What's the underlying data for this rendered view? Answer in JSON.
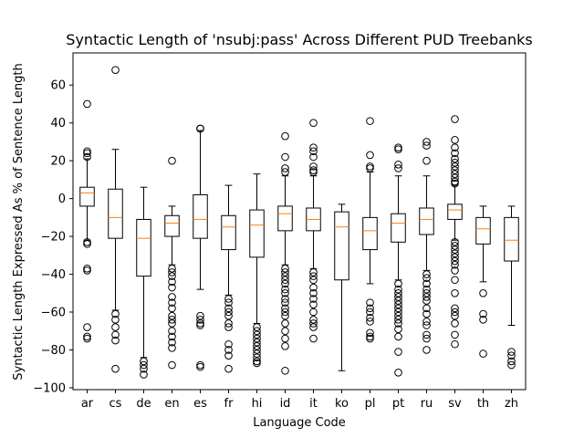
{
  "chart_data": {
    "type": "box",
    "title": "Syntactic Length of 'nsubj:pass' Across Different PUD Treebanks",
    "xlabel": "Language Code",
    "ylabel": "Syntactic Length Expressed As % of Sentence Length",
    "ylim": [
      -101,
      77
    ],
    "yticks": [
      -100,
      -80,
      -60,
      -40,
      -20,
      0,
      20,
      40,
      60
    ],
    "grid": false,
    "colors": {
      "box": "#000000",
      "median": "#ff7f0e",
      "flier": "#000000"
    },
    "categories": [
      "ar",
      "cs",
      "de",
      "en",
      "es",
      "fr",
      "hi",
      "id",
      "it",
      "ko",
      "pl",
      "pt",
      "ru",
      "sv",
      "th",
      "zh"
    ],
    "boxes": [
      {
        "label": "ar",
        "whislo": -22,
        "q1": -4,
        "med": 3,
        "q3": 6,
        "whishi": 21,
        "fliers": [
          50,
          25,
          24,
          22,
          -23,
          -24,
          -37,
          -38,
          -68,
          -73,
          -74
        ]
      },
      {
        "label": "cs",
        "whislo": -59,
        "q1": -21,
        "med": -10,
        "q3": 5,
        "whishi": 26,
        "fliers": [
          68,
          -61,
          -64,
          -68,
          -72,
          -75,
          -90
        ]
      },
      {
        "label": "de",
        "whislo": -84,
        "q1": -41,
        "med": -21,
        "q3": -11,
        "whishi": 6,
        "fliers": [
          -86,
          -88,
          -90,
          -93
        ]
      },
      {
        "label": "en",
        "whislo": -35,
        "q1": -20,
        "med": -13,
        "q3": -9,
        "whishi": -4,
        "fliers": [
          20,
          -37,
          -39,
          -41,
          -44,
          -47,
          -52,
          -55,
          -58,
          -62,
          -64,
          -66,
          -70,
          -73,
          -76,
          -79,
          -88
        ]
      },
      {
        "label": "es",
        "whislo": -48,
        "q1": -21,
        "med": -11,
        "q3": 2,
        "whishi": 36,
        "fliers": [
          37,
          37,
          -62,
          -64,
          -66,
          -67,
          -88,
          -89
        ]
      },
      {
        "label": "fr",
        "whislo": -51,
        "q1": -27,
        "med": -15,
        "q3": -9,
        "whishi": 7,
        "fliers": [
          -53,
          -55,
          -58,
          -60,
          -62,
          -66,
          -68,
          -77,
          -80,
          -83,
          -90
        ]
      },
      {
        "label": "hi",
        "whislo": -66,
        "q1": -31,
        "med": -14,
        "q3": -6,
        "whishi": 13,
        "fliers": [
          -68,
          -70,
          -72,
          -74,
          -76,
          -78,
          -80,
          -82,
          -84,
          -86,
          -87
        ]
      },
      {
        "label": "id",
        "whislo": -35,
        "q1": -17,
        "med": -8,
        "q3": -4,
        "whishi": 12,
        "fliers": [
          33,
          22,
          16,
          14,
          -37,
          -39,
          -41,
          -43,
          -45,
          -48,
          -50,
          -53,
          -55,
          -58,
          -60,
          -62,
          -66,
          -70,
          -74,
          -78,
          -91
        ]
      },
      {
        "label": "it",
        "whislo": -37,
        "q1": -17,
        "med": -11,
        "q3": -5,
        "whishi": 12,
        "fliers": [
          40,
          27,
          25,
          22,
          17,
          15,
          14,
          -39,
          -41,
          -43,
          -47,
          -50,
          -53,
          -56,
          -60,
          -64,
          -66,
          -68,
          -74
        ]
      },
      {
        "label": "ko",
        "whislo": -91,
        "q1": -43,
        "med": -15,
        "q3": -7,
        "whishi": -3,
        "fliers": []
      },
      {
        "label": "pl",
        "whislo": -45,
        "q1": -27,
        "med": -17,
        "q3": -10,
        "whishi": 14,
        "fliers": [
          41,
          23,
          17,
          16,
          -55,
          -58,
          -60,
          -63,
          -65,
          -71,
          -73,
          -74
        ]
      },
      {
        "label": "pt",
        "whislo": -43,
        "q1": -23,
        "med": -13,
        "q3": -8,
        "whishi": 12,
        "fliers": [
          27,
          26,
          18,
          16,
          -45,
          -48,
          -50,
          -52,
          -54,
          -56,
          -58,
          -60,
          -62,
          -64,
          -66,
          -69,
          -73,
          -81,
          -92
        ]
      },
      {
        "label": "ru",
        "whislo": -38,
        "q1": -19,
        "med": -11,
        "q3": -5,
        "whishi": 12,
        "fliers": [
          30,
          28,
          20,
          -40,
          -42,
          -45,
          -48,
          -50,
          -52,
          -54,
          -58,
          -61,
          -65,
          -67,
          -72,
          -74,
          -80
        ]
      },
      {
        "label": "sv",
        "whislo": -22,
        "q1": -11,
        "med": -6,
        "q3": -3,
        "whishi": 7,
        "fliers": [
          42,
          31,
          27,
          24,
          21,
          19,
          17,
          15,
          13,
          11,
          9,
          8,
          -23,
          -25,
          -27,
          -29,
          -31,
          -33,
          -35,
          -38,
          -43,
          -50,
          -58,
          -60,
          -62,
          -66,
          -72,
          -77
        ]
      },
      {
        "label": "th",
        "whislo": -44,
        "q1": -24,
        "med": -16,
        "q3": -10,
        "whishi": -4,
        "fliers": [
          -50,
          -61,
          -64,
          -82
        ]
      },
      {
        "label": "zh",
        "whislo": -67,
        "q1": -33,
        "med": -22,
        "q3": -10,
        "whishi": -4,
        "fliers": [
          -81,
          -83,
          -86,
          -88
        ]
      }
    ]
  }
}
